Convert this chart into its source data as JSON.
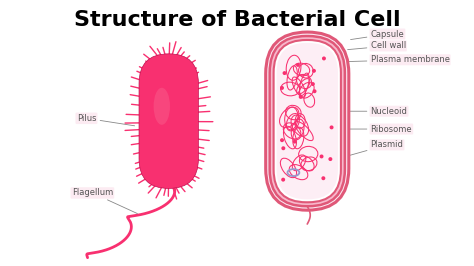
{
  "title": "Structure of Bacterial Cell",
  "title_fontsize": 16,
  "title_fontweight": "bold",
  "background_color": "#ffffff",
  "deep_pink": "#f01060",
  "medium_pink": "#f04080",
  "light_pink": "#f8a0b8",
  "very_light_pink": "#fce8f0",
  "pale_pink": "#f9c8d8",
  "outline_pink": "#e05878",
  "dark_red": "#c01050",
  "fill_pink": "#f83070",
  "blue_plasmid": "#9999cc",
  "label_color": "#555555",
  "label_fontsize": 6.0,
  "label_bg": "#fce8f0",
  "labels_right": [
    "Capsule",
    "Cell wall",
    "Plasma membrane",
    "Nucleoid",
    "Ribosome",
    "Plasmid"
  ],
  "labels_left": [
    "Pilus",
    "Flagellum"
  ]
}
